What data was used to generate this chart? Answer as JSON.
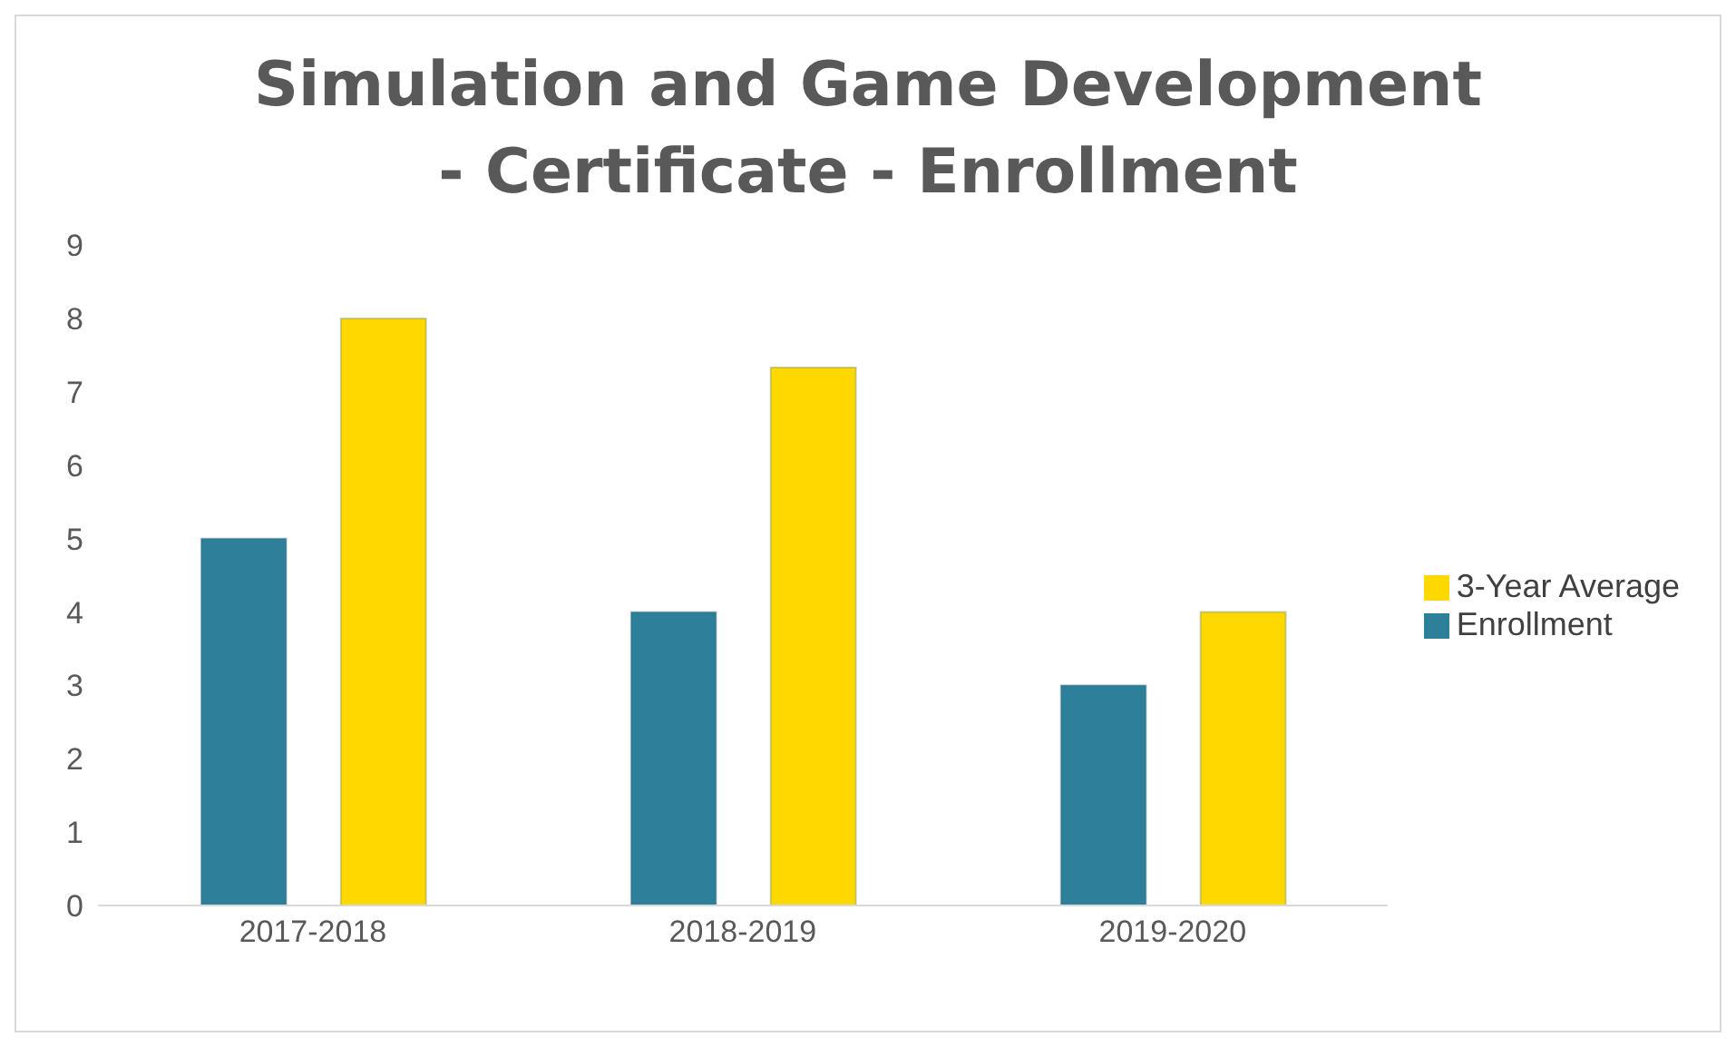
{
  "chart_data": {
    "type": "bar",
    "title": "Simulation and Game Development - Certificate - Enrollment",
    "categories": [
      "2017-2018",
      "2018-2019",
      "2019-2020"
    ],
    "series": [
      {
        "name": "Enrollment",
        "color": "#2e7f99",
        "values": [
          5,
          4,
          3
        ]
      },
      {
        "name": "3-Year Average",
        "color": "#ffd800",
        "values": [
          8,
          7.33,
          4
        ]
      }
    ],
    "ylim": [
      0,
      9
    ],
    "yticks": [
      0,
      1,
      2,
      3,
      4,
      5,
      6,
      7,
      8,
      9
    ],
    "grid": false,
    "legend": "right"
  }
}
